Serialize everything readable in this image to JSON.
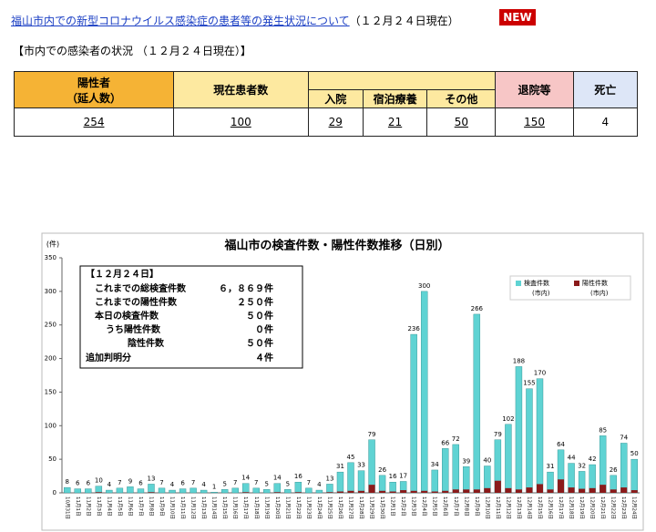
{
  "header": {
    "link": "福山市内での新型コロナウイルス感染症の患者等の発生状況について",
    "date": "（１２月２４日現在）",
    "badge": "NEW"
  },
  "section_title": "【市内での感染者の状況 （１２月２４日現在）】",
  "table": {
    "positive": {
      "label": "陽性者",
      "sublabel": "（延人数）",
      "value": 254
    },
    "current": {
      "label": "現在患者数",
      "value": 100
    },
    "hospital": {
      "label": "入院",
      "value": 29
    },
    "hotel": {
      "label": "宿泊療養",
      "value": 21
    },
    "other": {
      "label": "その他",
      "value": 50
    },
    "discharged": {
      "label": "退院等",
      "value": 150
    },
    "deaths": {
      "label": "死亡",
      "value": 4
    }
  },
  "info_box": {
    "heading": "【１２月２４日】",
    "lines": [
      {
        "label": "これまでの総検査件数",
        "value": "６，８６９件"
      },
      {
        "label": "これまでの陽性件数",
        "value": "２５０件"
      },
      {
        "label": "本日の検査件数",
        "value": "５０件"
      },
      {
        "label": "うち陽性件数",
        "value": "０件"
      },
      {
        "label": "陰性件数",
        "value": "５０件"
      },
      {
        "label": "追加判明分",
        "value": "４件"
      }
    ]
  },
  "chart_data": {
    "type": "bar",
    "title": "福山市の検査件数・陽性件数推移（日別）",
    "y_label": "(件)",
    "categories": [
      "10月31日",
      "11月1日",
      "11月2日",
      "11月3日",
      "11月4日",
      "11月5日",
      "11月6日",
      "11月7日",
      "11月8日",
      "11月9日",
      "11月10日",
      "11月11日",
      "11月12日",
      "11月13日",
      "11月14日",
      "11月15日",
      "11月16日",
      "11月17日",
      "11月18日",
      "11月19日",
      "11月20日",
      "11月21日",
      "11月22日",
      "11月23日",
      "11月24日",
      "11月25日",
      "11月26日",
      "11月27日",
      "11月28日",
      "11月29日",
      "11月30日",
      "12月1日",
      "12月2日",
      "12月3日",
      "12月4日",
      "12月5日",
      "12月6日",
      "12月7日",
      "12月8日",
      "12月9日",
      "12月10日",
      "12月11日",
      "12月12日",
      "12月13日",
      "12月14日",
      "12月15日",
      "12月16日",
      "12月17日",
      "12月18日",
      "12月19日",
      "12月20日",
      "12月21日",
      "12月22日",
      "12月23日",
      "12月24日"
    ],
    "series": [
      {
        "name": "検査件数",
        "subname": "(市内)",
        "color": "#5fd3d3",
        "values": [
          8,
          6,
          6,
          10,
          4,
          7,
          9,
          6,
          13,
          7,
          4,
          6,
          7,
          4,
          1,
          5,
          7,
          14,
          7,
          5,
          14,
          5,
          16,
          7,
          4,
          13,
          31,
          45,
          33,
          79,
          26,
          16,
          17,
          236,
          300,
          34,
          66,
          72,
          39,
          266,
          40,
          79,
          102,
          188,
          155,
          170,
          31,
          64,
          44,
          32,
          42,
          85,
          26,
          74,
          50
        ]
      },
      {
        "name": "陽性件数",
        "subname": "(市内)",
        "color": "#8b1a1a",
        "values": [
          0,
          0,
          0,
          1,
          0,
          0,
          0,
          0,
          1,
          0,
          0,
          0,
          0,
          0,
          0,
          0,
          0,
          1,
          0,
          0,
          1,
          0,
          1,
          0,
          0,
          1,
          2,
          3,
          3,
          12,
          3,
          2,
          4,
          3,
          3,
          2,
          3,
          5,
          5,
          5,
          7,
          18,
          7,
          5,
          8,
          13,
          5,
          20,
          8,
          6,
          7,
          12,
          5,
          8,
          4
        ]
      }
    ],
    "ylim": [
      0,
      350
    ],
    "yticks": [
      0,
      50,
      100,
      150,
      200,
      250,
      300,
      350
    ],
    "grid": false
  }
}
